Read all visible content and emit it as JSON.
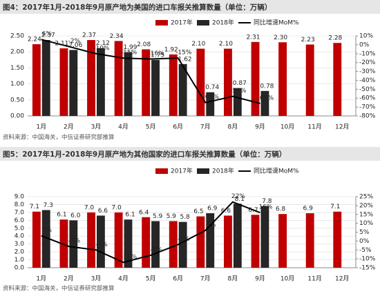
{
  "chart_data": [
    {
      "type": "bar",
      "title": "图4：2017年1月-2018年9月原产地为美国的进口车报关推算数量（单位：万辆）",
      "source": "资料来源：中国海关，中信证券研究部推算",
      "categories": [
        "1月",
        "2月",
        "3月",
        "4月",
        "5月",
        "6月",
        "7月",
        "8月",
        "9月",
        "10月",
        "11月",
        "12月"
      ],
      "series": [
        {
          "name": "2017年",
          "color": "#c00000",
          "values": [
            2.24,
            2.11,
            2.37,
            2.34,
            2.08,
            1.92,
            2.1,
            2.1,
            2.31,
            2.3,
            2.23,
            2.28
          ],
          "value_labels": [
            "2.24",
            "2.11",
            "2.37",
            "2.34",
            "2.08",
            "1.92",
            "2.10",
            "2.10",
            "2.31",
            "2.30",
            "2.23",
            "2.28"
          ]
        },
        {
          "name": "2018年",
          "color": "#262626",
          "values": [
            2.37,
            2.06,
            2.12,
            1.99,
            1.75,
            1.62,
            0.74,
            0.87,
            0.78,
            null,
            null,
            null
          ],
          "value_labels": [
            "2.37",
            "2.06",
            "2.12",
            "1.99",
            "1.75",
            "1.62",
            "0.74",
            "0.87",
            "0.78",
            null,
            null,
            null
          ]
        },
        {
          "name": "同比增速MoM%",
          "color": "#000000",
          "type": "line",
          "axis": "y2",
          "values": [
            6,
            -2,
            -10,
            -15,
            -16,
            -15,
            -65,
            -58,
            -66,
            null,
            null,
            null
          ],
          "value_labels": [
            "6%",
            "-2%",
            "-10%",
            "-15%",
            "-16%",
            "-15%",
            "-65%",
            "-58%",
            "-66%",
            null,
            null,
            null
          ]
        }
      ],
      "ylim": [
        0,
        2.5
      ],
      "yticks": [
        {
          "value": 0,
          "label": "0.00"
        },
        {
          "value": 0.5,
          "label": "0.50"
        },
        {
          "value": 1,
          "label": "1.00"
        },
        {
          "value": 1.5,
          "label": "1.50"
        },
        {
          "value": 2,
          "label": "2.00"
        },
        {
          "value": 2.5,
          "label": "2.50"
        }
      ],
      "y2lim": [
        -80,
        10
      ],
      "y2ticks": [
        {
          "value": -80,
          "label": "-80%"
        },
        {
          "value": -70,
          "label": "-70%"
        },
        {
          "value": -60,
          "label": "-60%"
        },
        {
          "value": -50,
          "label": "-50%"
        },
        {
          "value": -40,
          "label": "-40%"
        },
        {
          "value": -30,
          "label": "-30%"
        },
        {
          "value": -20,
          "label": "-20%"
        },
        {
          "value": -10,
          "label": "-10%"
        },
        {
          "value": 0,
          "label": "0%"
        },
        {
          "value": 10,
          "label": "10%"
        }
      ]
    },
    {
      "type": "bar",
      "title": "图5：2017年1月-2018年9月原产地为其他国家的进口车报关推算数量（单位：万辆）",
      "source": "资料来源：中国海关，中信证券研究部推算",
      "categories": [
        "1月",
        "2月",
        "3月",
        "4月",
        "5月",
        "6月",
        "7月",
        "8月",
        "9月",
        "10月",
        "11月",
        "12月"
      ],
      "series": [
        {
          "name": "2017年",
          "color": "#c00000",
          "values": [
            7.1,
            6.1,
            7.0,
            7.0,
            6.4,
            5.9,
            6.5,
            6.6,
            6.7,
            6.8,
            6.9,
            7.1
          ],
          "value_labels": [
            "7.1",
            "6.1",
            "7.0",
            "7.0",
            "6.4",
            "5.9",
            "6.5",
            "6.6",
            "6.7",
            "6.8",
            "6.9",
            "7.1"
          ]
        },
        {
          "name": "2018年",
          "color": "#262626",
          "values": [
            7.3,
            6.0,
            6.6,
            6.1,
            5.9,
            5.8,
            6.9,
            8.1,
            7.8,
            null,
            null,
            null
          ],
          "value_labels": [
            "7.3",
            "6.0",
            "6.6",
            "6.1",
            "5.9",
            "5.8",
            "6.9",
            "8.1",
            "7.8",
            null,
            null,
            null
          ]
        },
        {
          "name": "同比增速MoM%",
          "color": "#000000",
          "type": "line",
          "axis": "y2",
          "values": [
            3,
            -3,
            -5,
            -12,
            -8,
            -2,
            6,
            22,
            16,
            null,
            null,
            null
          ],
          "value_labels": [
            "3%",
            "-3%",
            "-5%",
            "-12%",
            "-8%",
            "-2%",
            "6%",
            "22%",
            "16%",
            null,
            null,
            null
          ]
        }
      ],
      "ylim": [
        0,
        9
      ],
      "yticks": [
        {
          "value": 0,
          "label": "0.0"
        },
        {
          "value": 1,
          "label": "1.0"
        },
        {
          "value": 2,
          "label": "2.0"
        },
        {
          "value": 3,
          "label": "3.0"
        },
        {
          "value": 4,
          "label": "4.0"
        },
        {
          "value": 5,
          "label": "5.0"
        },
        {
          "value": 6,
          "label": "6.0"
        },
        {
          "value": 7,
          "label": "7.0"
        },
        {
          "value": 8,
          "label": "8.0"
        },
        {
          "value": 9,
          "label": "9.0"
        }
      ],
      "y2lim": [
        -15,
        25
      ],
      "y2ticks": [
        {
          "value": -15,
          "label": "-15%"
        },
        {
          "value": -10,
          "label": "-10%"
        },
        {
          "value": -5,
          "label": "-5%"
        },
        {
          "value": 0,
          "label": "0%"
        },
        {
          "value": 5,
          "label": "5%"
        },
        {
          "value": 10,
          "label": "10%"
        },
        {
          "value": 15,
          "label": "15%"
        },
        {
          "value": 20,
          "label": "20%"
        },
        {
          "value": 25,
          "label": "25%"
        }
      ]
    }
  ]
}
